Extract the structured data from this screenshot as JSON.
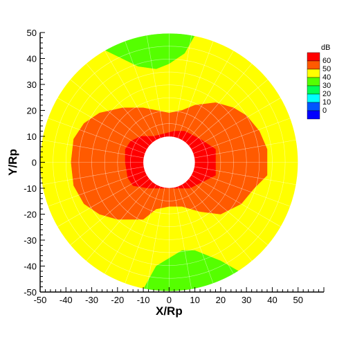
{
  "chart_data": {
    "type": "heatmap",
    "plot_kind": "polar contour map",
    "xlabel": "X/Rp",
    "ylabel": "Y/Rp",
    "xlim": [
      -50,
      60
    ],
    "ylim": [
      -50,
      50
    ],
    "x_ticks": [
      -50,
      -40,
      -30,
      -20,
      -10,
      0,
      10,
      20,
      30,
      40,
      50
    ],
    "y_ticks": [
      -50,
      -40,
      -30,
      -20,
      -10,
      0,
      10,
      20,
      30,
      40,
      50
    ],
    "legend": {
      "title": "dB",
      "placement": "top-right",
      "levels": [
        {
          "label": "60",
          "color": "#ff0000"
        },
        {
          "label": "50",
          "color": "#ff5a00"
        },
        {
          "label": "40",
          "color": "#ffff00"
        },
        {
          "label": "30",
          "color": "#55ff00"
        },
        {
          "label": "20",
          "color": "#00ff55"
        },
        {
          "label": "10",
          "color": "#00ffff"
        },
        {
          "label": "0",
          "color": "#0055ff"
        },
        {
          "label": "",
          "color": "#0000ff"
        }
      ]
    },
    "domain": {
      "inner_radius": 10,
      "outer_radius": 50
    },
    "regions": [
      {
        "level": "yellow",
        "color": "#ffff00",
        "polygon": [
          [
            0,
            50
          ],
          [
            50,
            0
          ],
          [
            0,
            -50
          ],
          [
            -50,
            0
          ]
        ]
      },
      {
        "level": "green-top",
        "color": "#55ff00",
        "polygon": [
          [
            -25,
            43.3
          ],
          [
            -15,
            47.7
          ],
          [
            -5,
            49.7
          ],
          [
            5,
            49.7
          ],
          [
            10,
            49
          ],
          [
            6,
            42
          ],
          [
            0,
            38
          ],
          [
            -5,
            36
          ],
          [
            -12,
            37
          ],
          [
            -25,
            43.3
          ]
        ]
      },
      {
        "level": "green-bottom",
        "color": "#55ff00",
        "polygon": [
          [
            -10,
            -49
          ],
          [
            0,
            -49.9
          ],
          [
            10,
            -49
          ],
          [
            20,
            -45.8
          ],
          [
            27,
            -42
          ],
          [
            20,
            -38
          ],
          [
            10,
            -34
          ],
          [
            5,
            -34
          ],
          [
            -5,
            -40
          ],
          [
            -10,
            -49
          ]
        ]
      },
      {
        "level": "orange",
        "color": "#ff5a00",
        "polygon": [
          [
            -38,
            0
          ],
          [
            -37,
            -9
          ],
          [
            -33,
            -16
          ],
          [
            -27,
            -20
          ],
          [
            -20,
            -22
          ],
          [
            -10,
            -22
          ],
          [
            -5,
            -18
          ],
          [
            0,
            -17
          ],
          [
            5,
            -17
          ],
          [
            12,
            -19
          ],
          [
            20,
            -20
          ],
          [
            28,
            -16
          ],
          [
            33,
            -10
          ],
          [
            38,
            -5
          ],
          [
            38,
            5
          ],
          [
            35,
            12
          ],
          [
            30,
            18
          ],
          [
            25,
            21
          ],
          [
            18,
            23
          ],
          [
            10,
            22
          ],
          [
            5,
            20
          ],
          [
            0,
            19
          ],
          [
            -5,
            20
          ],
          [
            -10,
            21
          ],
          [
            -18,
            21
          ],
          [
            -27,
            19
          ],
          [
            -33,
            15
          ],
          [
            -37,
            9
          ],
          [
            -38,
            0
          ]
        ]
      },
      {
        "level": "red",
        "color": "#ff0000",
        "polygon": [
          [
            -17,
            0
          ],
          [
            -16,
            -6
          ],
          [
            -14,
            -9
          ],
          [
            -8,
            -10
          ],
          [
            -4,
            -10
          ],
          [
            3,
            -10
          ],
          [
            8,
            -10
          ],
          [
            12,
            -8
          ],
          [
            18,
            -5
          ],
          [
            18,
            5
          ],
          [
            12,
            9
          ],
          [
            6,
            12
          ],
          [
            2,
            12
          ],
          [
            -2,
            11
          ],
          [
            -6,
            10
          ],
          [
            -11,
            10
          ],
          [
            -15,
            8
          ],
          [
            -17,
            5
          ],
          [
            -17,
            0
          ]
        ]
      }
    ]
  }
}
